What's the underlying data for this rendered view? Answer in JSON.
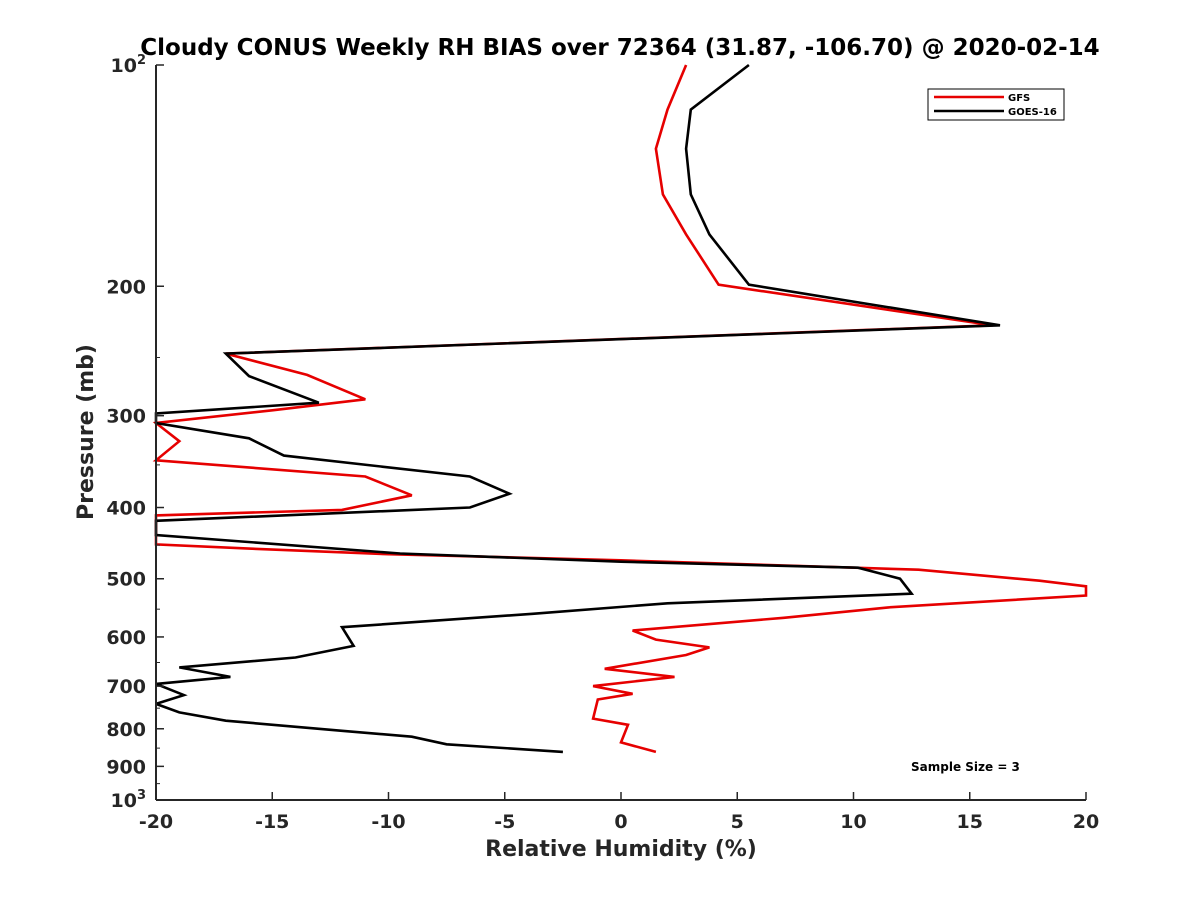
{
  "chart_data": {
    "type": "line",
    "title": "Cloudy CONUS Weekly RH BIAS over 72364 (31.87, -106.70) @ 2020-02-14",
    "xlabel": "Relative Humidity (%)",
    "ylabel": "Pressure (mb)",
    "xlim": [
      -20,
      20
    ],
    "ylim": [
      100,
      1000
    ],
    "y_scale": "log",
    "y_reversed": true,
    "xticks": [
      "-20",
      "-15",
      "-10",
      "-5",
      "0",
      "5",
      "10",
      "15",
      "20"
    ],
    "yticks": [
      "200",
      "300",
      "400",
      "500",
      "600",
      "700",
      "800",
      "900"
    ],
    "y_exp_ticks": [
      {
        "base": "10",
        "exp": "2"
      },
      {
        "base": "10",
        "exp": "3"
      }
    ],
    "legend_position": "top-right",
    "annotation": "Sample Size = 3",
    "series": [
      {
        "name": "GFS",
        "color": "#e60000",
        "points": [
          [
            2.8,
            100
          ],
          [
            2.0,
            115
          ],
          [
            1.5,
            130
          ],
          [
            1.8,
            150
          ],
          [
            2.8,
            170
          ],
          [
            4.2,
            199
          ],
          [
            16.0,
            226
          ],
          [
            -17.0,
            247
          ],
          [
            -13.5,
            264
          ],
          [
            -11.0,
            285
          ],
          [
            -15.0,
            295
          ],
          [
            -20.0,
            307
          ],
          [
            -19.0,
            325
          ],
          [
            -20.0,
            345
          ],
          [
            -11.0,
            363
          ],
          [
            -9.0,
            385
          ],
          [
            -12.0,
            403
          ],
          [
            -20.0,
            410
          ],
          [
            -20.0,
            449
          ],
          [
            -16.0,
            455
          ],
          [
            -10.0,
            463
          ],
          [
            0.0,
            472
          ],
          [
            12.8,
            486
          ],
          [
            18.0,
            503
          ],
          [
            20.0,
            512
          ],
          [
            20.0,
            527
          ],
          [
            11.5,
            547
          ],
          [
            7.0,
            565
          ],
          [
            0.5,
            588
          ],
          [
            1.5,
            605
          ],
          [
            3.8,
            620
          ],
          [
            2.8,
            635
          ],
          [
            -0.7,
            663
          ],
          [
            2.3,
            680
          ],
          [
            -1.2,
            700
          ],
          [
            0.5,
            717
          ],
          [
            -1.0,
            730
          ],
          [
            -1.2,
            775
          ],
          [
            0.3,
            790
          ],
          [
            0.0,
            835
          ],
          [
            1.5,
            860
          ]
        ]
      },
      {
        "name": "GOES-16",
        "color": "#000000",
        "points": [
          [
            5.5,
            100
          ],
          [
            3.0,
            115
          ],
          [
            2.8,
            130
          ],
          [
            3.0,
            150
          ],
          [
            3.8,
            170
          ],
          [
            5.5,
            199
          ],
          [
            16.3,
            226
          ],
          [
            -17.0,
            247
          ],
          [
            -16.0,
            265
          ],
          [
            -13.0,
            288
          ],
          [
            -20.0,
            298
          ],
          [
            -20.0,
            307
          ],
          [
            -16.0,
            322
          ],
          [
            -14.5,
            340
          ],
          [
            -6.5,
            363
          ],
          [
            -4.8,
            383
          ],
          [
            -6.5,
            400
          ],
          [
            -20.0,
            417
          ],
          [
            -20.0,
            436
          ],
          [
            -9.5,
            462
          ],
          [
            0.0,
            474
          ],
          [
            10.2,
            483
          ],
          [
            12.0,
            500
          ],
          [
            12.5,
            524
          ],
          [
            2.0,
            540
          ],
          [
            -3.8,
            558
          ],
          [
            -12.0,
            582
          ],
          [
            -11.5,
            617
          ],
          [
            -14.0,
            640
          ],
          [
            -19.0,
            660
          ],
          [
            -16.8,
            680
          ],
          [
            -20.0,
            695
          ],
          [
            -18.8,
            720
          ],
          [
            -20.0,
            740
          ],
          [
            -19.0,
            760
          ],
          [
            -17.0,
            780
          ],
          [
            -12.0,
            805
          ],
          [
            -9.0,
            820
          ],
          [
            -7.5,
            840
          ],
          [
            -2.5,
            860
          ]
        ]
      }
    ]
  }
}
